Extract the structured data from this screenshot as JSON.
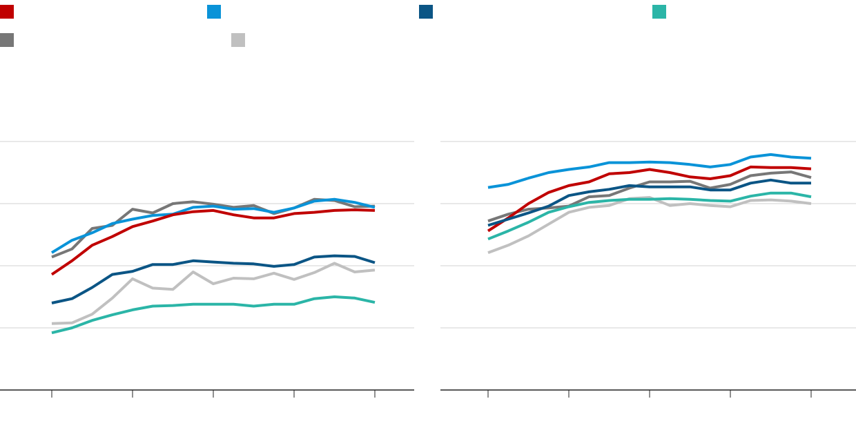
{
  "colors": {
    "red": "#c00000",
    "light_blue": "#0a93d8",
    "dark_blue": "#0b5585",
    "teal": "#2bb5a7",
    "dark_gray": "#777777",
    "light_gray": "#c0c0c0",
    "gridline": "#d9d9d9",
    "axis": "#222222"
  },
  "legend": [
    {
      "color_key": "red",
      "label": ""
    },
    {
      "color_key": "light_blue",
      "label": ""
    },
    {
      "color_key": "dark_blue",
      "label": ""
    },
    {
      "color_key": "teal",
      "label": ""
    },
    {
      "color_key": "dark_gray",
      "label": ""
    },
    {
      "color_key": "light_gray",
      "label": ""
    }
  ],
  "chart_data": [
    {
      "type": "line",
      "title": "",
      "xlabel": "",
      "ylabel": "",
      "grid": true,
      "legend_position": "top",
      "ylim": [
        0,
        4
      ],
      "gridlines": [
        1,
        2,
        3,
        4
      ],
      "x": [
        1,
        2,
        3,
        4,
        5,
        6,
        7,
        8,
        9,
        10,
        11,
        12,
        13,
        14,
        15,
        16,
        17
      ],
      "xticks": [
        1,
        5,
        9,
        13,
        17
      ],
      "series": [
        {
          "color_key": "dark_gray",
          "values": [
            2.14,
            2.27,
            2.6,
            2.65,
            2.91,
            2.85,
            3.0,
            3.03,
            2.99,
            2.94,
            2.97,
            2.84,
            2.93,
            3.07,
            3.05,
            2.95,
            2.96
          ]
        },
        {
          "color_key": "light_blue",
          "values": [
            2.21,
            2.41,
            2.53,
            2.68,
            2.75,
            2.81,
            2.83,
            2.94,
            2.96,
            2.91,
            2.92,
            2.86,
            2.93,
            3.04,
            3.07,
            3.02,
            2.94
          ]
        },
        {
          "color_key": "red",
          "values": [
            1.86,
            2.08,
            2.33,
            2.47,
            2.63,
            2.72,
            2.82,
            2.87,
            2.89,
            2.82,
            2.77,
            2.77,
            2.84,
            2.86,
            2.89,
            2.9,
            2.89
          ]
        },
        {
          "color_key": "dark_blue",
          "values": [
            1.4,
            1.47,
            1.65,
            1.86,
            1.91,
            2.02,
            2.02,
            2.08,
            2.06,
            2.04,
            2.03,
            1.99,
            2.02,
            2.14,
            2.16,
            2.15,
            2.05
          ]
        },
        {
          "color_key": "light_gray",
          "values": [
            1.07,
            1.08,
            1.22,
            1.48,
            1.79,
            1.64,
            1.62,
            1.9,
            1.71,
            1.8,
            1.79,
            1.88,
            1.78,
            1.89,
            2.04,
            1.9,
            1.93
          ]
        },
        {
          "color_key": "teal",
          "values": [
            0.92,
            1.0,
            1.12,
            1.21,
            1.29,
            1.35,
            1.36,
            1.38,
            1.38,
            1.38,
            1.35,
            1.38,
            1.38,
            1.47,
            1.5,
            1.48,
            1.41
          ]
        }
      ]
    },
    {
      "type": "line",
      "title": "",
      "xlabel": "",
      "ylabel": "",
      "grid": true,
      "legend_position": "top",
      "ylim": [
        0,
        4
      ],
      "gridlines": [
        1,
        2,
        3,
        4
      ],
      "x": [
        1,
        2,
        3,
        4,
        5,
        6,
        7,
        8,
        9,
        10,
        11,
        12,
        13,
        14,
        15,
        16,
        17
      ],
      "xticks": [
        1,
        5,
        9,
        13,
        17
      ],
      "series": [
        {
          "color_key": "dark_gray",
          "values": [
            2.72,
            2.83,
            2.91,
            2.93,
            2.96,
            3.11,
            3.13,
            3.25,
            3.35,
            3.35,
            3.36,
            3.25,
            3.31,
            3.45,
            3.49,
            3.51,
            3.42
          ]
        },
        {
          "color_key": "red",
          "values": [
            2.56,
            2.77,
            3.0,
            3.18,
            3.29,
            3.35,
            3.48,
            3.5,
            3.55,
            3.5,
            3.43,
            3.4,
            3.45,
            3.59,
            3.58,
            3.58,
            3.56
          ]
        },
        {
          "color_key": "light_blue",
          "values": [
            3.26,
            3.31,
            3.41,
            3.5,
            3.55,
            3.59,
            3.66,
            3.66,
            3.67,
            3.66,
            3.63,
            3.59,
            3.63,
            3.75,
            3.79,
            3.75,
            3.73
          ]
        },
        {
          "color_key": "dark_blue",
          "values": [
            2.65,
            2.75,
            2.85,
            2.96,
            3.13,
            3.19,
            3.23,
            3.29,
            3.27,
            3.27,
            3.27,
            3.22,
            3.22,
            3.33,
            3.38,
            3.33,
            3.33
          ]
        },
        {
          "color_key": "light_gray",
          "values": [
            2.21,
            2.33,
            2.48,
            2.67,
            2.86,
            2.94,
            2.97,
            3.08,
            3.1,
            2.97,
            3.0,
            2.97,
            2.95,
            3.05,
            3.06,
            3.04,
            3.0
          ]
        },
        {
          "color_key": "teal",
          "values": [
            2.43,
            2.56,
            2.7,
            2.86,
            2.95,
            3.02,
            3.05,
            3.07,
            3.07,
            3.08,
            3.07,
            3.05,
            3.04,
            3.12,
            3.17,
            3.17,
            3.11
          ]
        }
      ]
    }
  ]
}
